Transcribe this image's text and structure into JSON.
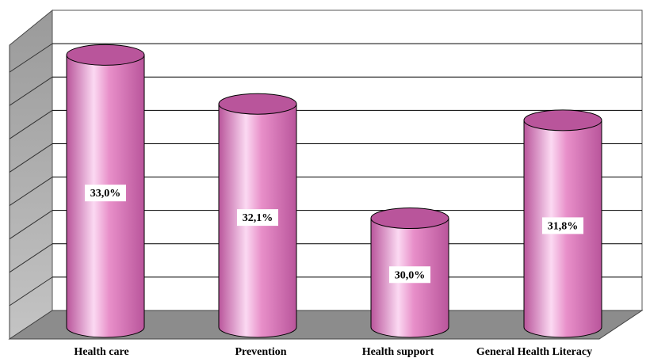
{
  "chart_data": {
    "type": "bar",
    "bar_shape": "cylinder",
    "categories": [
      "Health care",
      "Prevention",
      "Health support",
      "General Health Literacy"
    ],
    "values": [
      33.0,
      32.1,
      30.0,
      31.8
    ],
    "data_labels": [
      "33,0%",
      "32,1%",
      "30,0%",
      "31,8%"
    ],
    "ylim": [
      28,
      33.5
    ],
    "grid": true,
    "bar_color": "#e88fc9",
    "bar_highlight_color": "#fbd9f2",
    "bar_shadow_color": "#b9559b",
    "floor_color": "#8c8c8c",
    "wall_color": "#a6a6a6",
    "gridline_color": "#000000"
  }
}
